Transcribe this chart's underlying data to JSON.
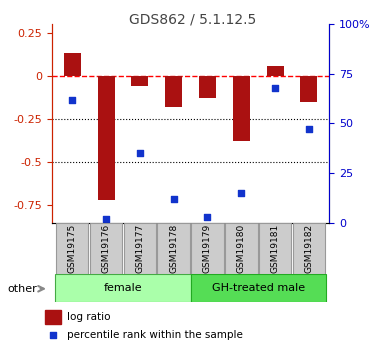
{
  "title": "GDS862 / 5.1.12.5",
  "samples": [
    "GSM19175",
    "GSM19176",
    "GSM19177",
    "GSM19178",
    "GSM19179",
    "GSM19180",
    "GSM19181",
    "GSM19182"
  ],
  "log_ratio": [
    0.13,
    -0.72,
    -0.06,
    -0.18,
    -0.13,
    -0.38,
    0.06,
    -0.15
  ],
  "percentile_rank": [
    62,
    2,
    35,
    12,
    3,
    15,
    68,
    47
  ],
  "groups": [
    {
      "label": "female",
      "color": "#aaffaa",
      "border": "#44aa44",
      "start": 0,
      "end": 4
    },
    {
      "label": "GH-treated male",
      "color": "#55dd55",
      "border": "#22aa22",
      "start": 4,
      "end": 8
    }
  ],
  "left_ylim": [
    -0.85,
    0.3
  ],
  "right_ylim": [
    0,
    100
  ],
  "left_yticks": [
    -0.75,
    -0.5,
    -0.25,
    0,
    0.25
  ],
  "right_yticks": [
    0,
    25,
    50,
    75,
    100
  ],
  "right_yticklabels": [
    "0",
    "25",
    "50",
    "75",
    "100%"
  ],
  "bar_color": "#aa1111",
  "dot_color": "#1133cc",
  "bar_width": 0.5,
  "dotted_lines": [
    -0.25,
    -0.5
  ],
  "title_color": "#444444",
  "left_axis_color": "#cc2200",
  "right_axis_color": "#0000cc",
  "legend_log_ratio": "log ratio",
  "legend_percentile": "percentile rank within the sample",
  "other_label": "other",
  "sample_box_color": "#cccccc",
  "sample_box_border": "#999999"
}
